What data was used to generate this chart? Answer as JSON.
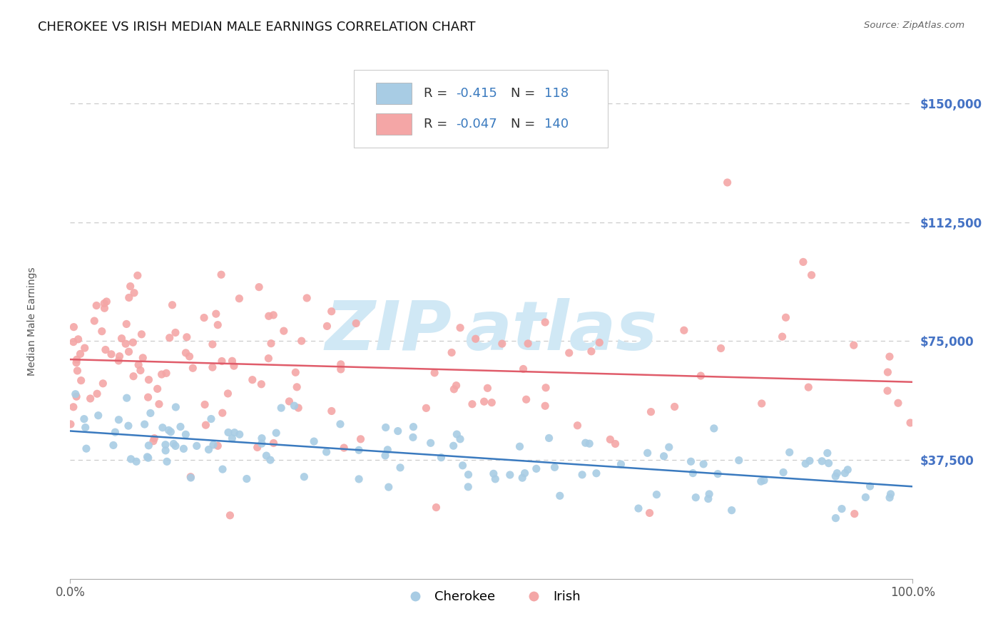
{
  "title": "CHEROKEE VS IRISH MEDIAN MALE EARNINGS CORRELATION CHART",
  "source": "Source: ZipAtlas.com",
  "ylabel": "Median Male Earnings",
  "yticks": [
    37500,
    75000,
    112500,
    150000
  ],
  "ylim": [
    0,
    162500
  ],
  "xlim": [
    0.0,
    1.0
  ],
  "cherokee_R": -0.415,
  "cherokee_N": 118,
  "irish_R": -0.047,
  "irish_N": 140,
  "cherokee_color": "#a8cce4",
  "irish_color": "#f4a6a6",
  "cherokee_line_color": "#3a7abf",
  "irish_line_color": "#e05c6a",
  "background_color": "#ffffff",
  "grid_color": "#cccccc",
  "title_fontsize": 13,
  "axis_label_fontsize": 10,
  "tick_label_fontsize": 12,
  "legend_fontsize": 13,
  "watermark_color": "#d0e8f5",
  "ytick_color": "#4472c4",
  "r_color": "#3a7abf",
  "n_color": "#3a7abf",
  "label_color": "#555555"
}
